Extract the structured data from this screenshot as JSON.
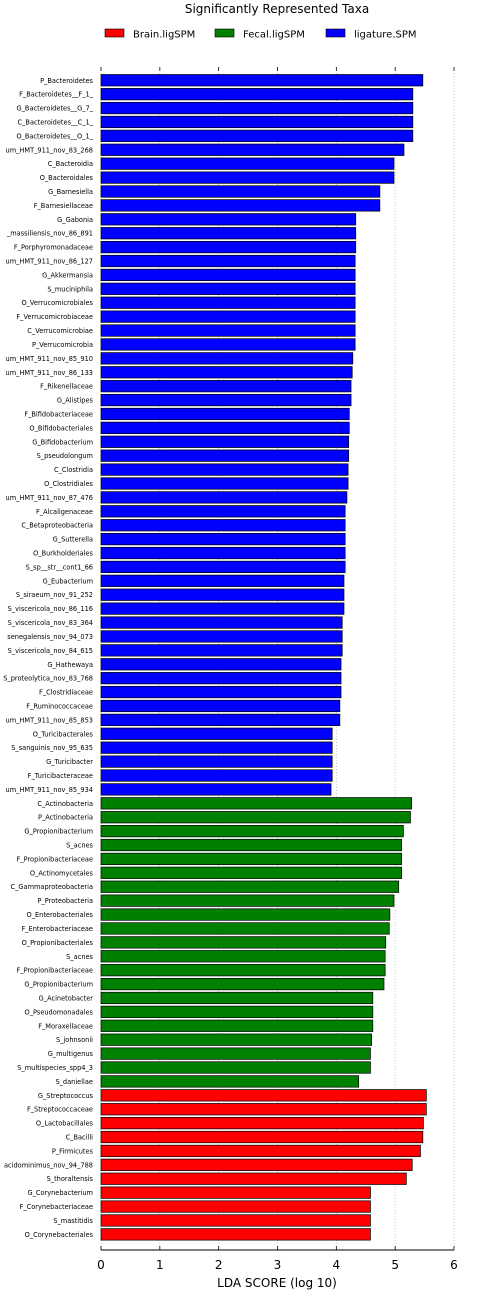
{
  "chart_data": {
    "type": "bar",
    "orientation": "horizontal",
    "title": "Significantly Represented Taxa",
    "xlabel": "LDA SCORE (log 10)",
    "ylabel": "",
    "xlim": [
      0,
      6
    ],
    "x_ticks": [
      "0",
      "1",
      "2",
      "3",
      "4",
      "5",
      "6"
    ],
    "grid": "vertical dotted",
    "legend_position": "top",
    "legend": [
      {
        "name": "Brain.ligSPM",
        "color": "#ff0000"
      },
      {
        "name": "Fecal.ligSPM",
        "color": "#008000"
      },
      {
        "name": "ligature.SPM",
        "color": "#0000ff"
      }
    ],
    "bars": [
      {
        "label": "P_Bacteroidetes",
        "value": 5.47,
        "group": "ligature.SPM"
      },
      {
        "label": "F_Bacteroidetes__F_1_",
        "value": 5.3,
        "group": "ligature.SPM"
      },
      {
        "label": "G_Bacteroidetes__G_7_",
        "value": 5.3,
        "group": "ligature.SPM"
      },
      {
        "label": "C_Bacteroidetes__C_1_",
        "value": 5.3,
        "group": "ligature.SPM"
      },
      {
        "label": "O_Bacteroidetes__O_1_",
        "value": 5.3,
        "group": "ligature.SPM"
      },
      {
        "label": "um_HMT_911_nov_83_268",
        "value": 5.15,
        "group": "ligature.SPM"
      },
      {
        "label": "C_Bacteroidia",
        "value": 4.98,
        "group": "ligature.SPM"
      },
      {
        "label": "O_Bacteroidales",
        "value": 4.98,
        "group": "ligature.SPM"
      },
      {
        "label": "G_Barnesiella",
        "value": 4.74,
        "group": "ligature.SPM"
      },
      {
        "label": "F_Barnesiellaceae",
        "value": 4.74,
        "group": "ligature.SPM"
      },
      {
        "label": "G_Gabonia",
        "value": 4.33,
        "group": "ligature.SPM"
      },
      {
        "label": "_massiliensis_nov_86_891",
        "value": 4.33,
        "group": "ligature.SPM"
      },
      {
        "label": "F_Porphyromonadaceae",
        "value": 4.33,
        "group": "ligature.SPM"
      },
      {
        "label": "um_HMT_911_nov_86_127",
        "value": 4.32,
        "group": "ligature.SPM"
      },
      {
        "label": "G_Akkermansia",
        "value": 4.32,
        "group": "ligature.SPM"
      },
      {
        "label": "S_muciniphila",
        "value": 4.32,
        "group": "ligature.SPM"
      },
      {
        "label": "O_Verrucomicrobiales",
        "value": 4.32,
        "group": "ligature.SPM"
      },
      {
        "label": "F_Verrucomicrobiaceae",
        "value": 4.32,
        "group": "ligature.SPM"
      },
      {
        "label": "C_Verrucomicrobiae",
        "value": 4.32,
        "group": "ligature.SPM"
      },
      {
        "label": "P_Verrucomicrobia",
        "value": 4.32,
        "group": "ligature.SPM"
      },
      {
        "label": "um_HMT_911_nov_85_910",
        "value": 4.28,
        "group": "ligature.SPM"
      },
      {
        "label": "um_HMT_911_nov_86_133",
        "value": 4.27,
        "group": "ligature.SPM"
      },
      {
        "label": "F_Rikenellaceae",
        "value": 4.25,
        "group": "ligature.SPM"
      },
      {
        "label": "G_Alistipes",
        "value": 4.25,
        "group": "ligature.SPM"
      },
      {
        "label": "F_Bifidobacteriaceae",
        "value": 4.22,
        "group": "ligature.SPM"
      },
      {
        "label": "O_Bifidobacteriales",
        "value": 4.22,
        "group": "ligature.SPM"
      },
      {
        "label": "G_Bifidobacterium",
        "value": 4.21,
        "group": "ligature.SPM"
      },
      {
        "label": "S_pseudolongum",
        "value": 4.21,
        "group": "ligature.SPM"
      },
      {
        "label": "C_Clostridia",
        "value": 4.2,
        "group": "ligature.SPM"
      },
      {
        "label": "O_Clostridiales",
        "value": 4.2,
        "group": "ligature.SPM"
      },
      {
        "label": "um_HMT_911_nov_87_476",
        "value": 4.18,
        "group": "ligature.SPM"
      },
      {
        "label": "F_Alcaligenaceae",
        "value": 4.15,
        "group": "ligature.SPM"
      },
      {
        "label": "C_Betaproteobacteria",
        "value": 4.15,
        "group": "ligature.SPM"
      },
      {
        "label": "G_Sutterella",
        "value": 4.15,
        "group": "ligature.SPM"
      },
      {
        "label": "O_Burkholderiales",
        "value": 4.15,
        "group": "ligature.SPM"
      },
      {
        "label": "S_sp__str__cont1_66",
        "value": 4.15,
        "group": "ligature.SPM"
      },
      {
        "label": "G_Eubacterium",
        "value": 4.13,
        "group": "ligature.SPM"
      },
      {
        "label": "S_siraeum_nov_91_252",
        "value": 4.13,
        "group": "ligature.SPM"
      },
      {
        "label": "S_viscericola_nov_86_116",
        "value": 4.13,
        "group": "ligature.SPM"
      },
      {
        "label": "S_viscericola_nov_83_364",
        "value": 4.1,
        "group": "ligature.SPM"
      },
      {
        "label": "senegalensis_nov_94_073",
        "value": 4.1,
        "group": "ligature.SPM"
      },
      {
        "label": "S_viscericola_nov_84_615",
        "value": 4.1,
        "group": "ligature.SPM"
      },
      {
        "label": "G_Hathewaya",
        "value": 4.08,
        "group": "ligature.SPM"
      },
      {
        "label": "S_proteolytica_nov_83_768",
        "value": 4.08,
        "group": "ligature.SPM"
      },
      {
        "label": "F_Clostridiaceae",
        "value": 4.08,
        "group": "ligature.SPM"
      },
      {
        "label": "F_Ruminococcaceae",
        "value": 4.06,
        "group": "ligature.SPM"
      },
      {
        "label": "um_HMT_911_nov_85_853",
        "value": 4.06,
        "group": "ligature.SPM"
      },
      {
        "label": "O_Turicibacterales",
        "value": 3.93,
        "group": "ligature.SPM"
      },
      {
        "label": "S_sanguinis_nov_95_635",
        "value": 3.93,
        "group": "ligature.SPM"
      },
      {
        "label": "G_Turicibacter",
        "value": 3.93,
        "group": "ligature.SPM"
      },
      {
        "label": "F_Turicibacteraceae",
        "value": 3.93,
        "group": "ligature.SPM"
      },
      {
        "label": "um_HMT_911_nov_85_934",
        "value": 3.91,
        "group": "ligature.SPM"
      },
      {
        "label": "C_Actinobacteria",
        "value": 5.28,
        "group": "Fecal.ligSPM"
      },
      {
        "label": "P_Actinobacteria",
        "value": 5.26,
        "group": "Fecal.ligSPM"
      },
      {
        "label": "G_Propionibacterium",
        "value": 5.14,
        "group": "Fecal.ligSPM"
      },
      {
        "label": "S_acnes",
        "value": 5.11,
        "group": "Fecal.ligSPM"
      },
      {
        "label": "F_Propionibacteriaceae",
        "value": 5.11,
        "group": "Fecal.ligSPM"
      },
      {
        "label": "O_Actinomycetales",
        "value": 5.11,
        "group": "Fecal.ligSPM"
      },
      {
        "label": "C_Gammaproteobacteria",
        "value": 5.06,
        "group": "Fecal.ligSPM"
      },
      {
        "label": "P_Proteobacteria",
        "value": 4.98,
        "group": "Fecal.ligSPM"
      },
      {
        "label": "O_Enterobacteriales",
        "value": 4.91,
        "group": "Fecal.ligSPM"
      },
      {
        "label": "F_Enterobacteriaceae",
        "value": 4.9,
        "group": "Fecal.ligSPM"
      },
      {
        "label": "O_Propionibacteriales",
        "value": 4.84,
        "group": "Fecal.ligSPM"
      },
      {
        "label": "S_acnes",
        "value": 4.83,
        "group": "Fecal.ligSPM"
      },
      {
        "label": "F_Propionibacteriaceae",
        "value": 4.83,
        "group": "Fecal.ligSPM"
      },
      {
        "label": "G_Propionibacterium",
        "value": 4.81,
        "group": "Fecal.ligSPM"
      },
      {
        "label": "G_Acinetobacter",
        "value": 4.62,
        "group": "Fecal.ligSPM"
      },
      {
        "label": "O_Pseudomonadales",
        "value": 4.62,
        "group": "Fecal.ligSPM"
      },
      {
        "label": "F_Moraxellaceae",
        "value": 4.62,
        "group": "Fecal.ligSPM"
      },
      {
        "label": "S_johnsonii",
        "value": 4.6,
        "group": "Fecal.ligSPM"
      },
      {
        "label": "G_multigenus",
        "value": 4.58,
        "group": "Fecal.ligSPM"
      },
      {
        "label": "S_multispecies_spp4_3",
        "value": 4.58,
        "group": "Fecal.ligSPM"
      },
      {
        "label": "S_daniellae",
        "value": 4.38,
        "group": "Fecal.ligSPM"
      },
      {
        "label": "G_Streptococcus",
        "value": 5.53,
        "group": "Brain.ligSPM"
      },
      {
        "label": "F_Streptococcaceae",
        "value": 5.53,
        "group": "Brain.ligSPM"
      },
      {
        "label": "O_Lactobacillales",
        "value": 5.48,
        "group": "Brain.ligSPM"
      },
      {
        "label": "C_Bacilli",
        "value": 5.47,
        "group": "Brain.ligSPM"
      },
      {
        "label": "P_Firmicutes",
        "value": 5.43,
        "group": "Brain.ligSPM"
      },
      {
        "label": "acidominimus_nov_94_788",
        "value": 5.29,
        "group": "Brain.ligSPM"
      },
      {
        "label": "S_thoraltensis",
        "value": 5.19,
        "group": "Brain.ligSPM"
      },
      {
        "label": "G_Corynebacterium",
        "value": 4.58,
        "group": "Brain.ligSPM"
      },
      {
        "label": "F_Corynebacteriaceae",
        "value": 4.58,
        "group": "Brain.ligSPM"
      },
      {
        "label": "S_mastitidis",
        "value": 4.58,
        "group": "Brain.ligSPM"
      },
      {
        "label": "O_Corynebacteriales",
        "value": 4.58,
        "group": "Brain.ligSPM"
      }
    ]
  }
}
